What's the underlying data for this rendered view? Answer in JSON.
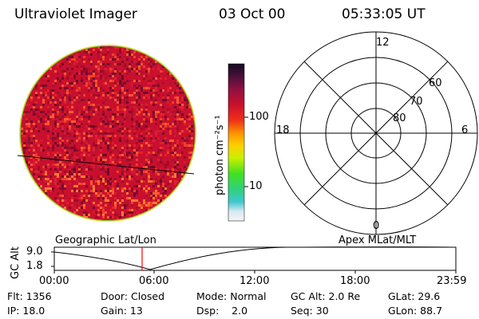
{
  "header": {
    "instrument": "Ultraviolet Imager",
    "date": "03 Oct 00",
    "time": "05:33:05 UT"
  },
  "colorbar": {
    "unit_label": "photon cm⁻²s⁻¹",
    "ticks": [
      "100",
      "10"
    ]
  },
  "polar": {
    "hour_labels": [
      "12",
      "18",
      "6",
      "0"
    ],
    "lat_labels": [
      "60",
      "70",
      "80"
    ]
  },
  "timeline": {
    "y_axis_label": "GC Alt",
    "y_ticks": [
      "9.0",
      "1.8"
    ],
    "left_title": "Geographic Lat/Lon",
    "right_title": "Apex MLat/MLT",
    "x_ticks": [
      "00:00",
      "06:00",
      "12:00",
      "18:00",
      "23:59"
    ]
  },
  "info": {
    "flt": "Flt: 1356",
    "door": "Door: Closed",
    "mode": "Mode: Normal",
    "gc_alt": "GC Alt: 2.0 Re",
    "glat": "GLat: 29.6",
    "ip": "IP: 18.0",
    "gain": "Gain: 13",
    "dsp": "Dsp:    2.0",
    "seq": "Seq: 30",
    "glon": "GLon: 88.7"
  },
  "colors": {
    "disk_base": "#c8102e",
    "marker": "#ff0000"
  }
}
